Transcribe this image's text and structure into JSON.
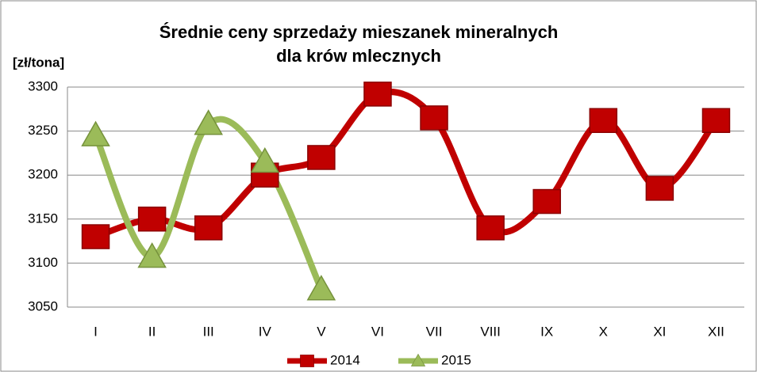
{
  "chart_data": {
    "type": "line",
    "title": [
      "Średnie ceny sprzedaży mieszanek mineralnych",
      "dla krów mlecznych"
    ],
    "y_label": "[zł/tona]",
    "categories": [
      "I",
      "II",
      "III",
      "IV",
      "V",
      "VI",
      "VII",
      "VIII",
      "IX",
      "X",
      "XI",
      "XII"
    ],
    "series": [
      {
        "name": "2014",
        "color": "#c00000",
        "marker": "square",
        "values": [
          3130,
          3150,
          3140,
          3200,
          3220,
          3292,
          3265,
          3140,
          3170,
          3262,
          3185,
          3262
        ]
      },
      {
        "name": "2015",
        "color": "#9bbb59",
        "marker": "triangle",
        "values": [
          3245,
          3107,
          3258,
          3215,
          3070,
          null,
          null,
          null,
          null,
          null,
          null,
          null
        ]
      }
    ],
    "ylim": [
      3050,
      3300
    ],
    "yticks": [
      3050,
      3100,
      3150,
      3200,
      3250,
      3300
    ],
    "grid": true,
    "smooth": true,
    "legend": "bottom"
  }
}
